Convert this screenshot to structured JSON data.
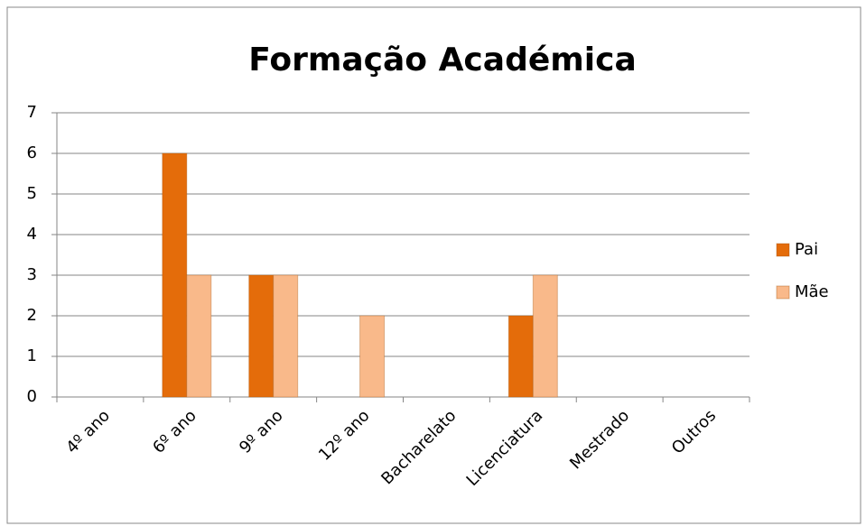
{
  "chart_data": {
    "type": "bar",
    "title": "Formação Académica",
    "categories": [
      "4º ano",
      "6º ano",
      "9º ano",
      "12º ano",
      "Bacharelato",
      "Licenciatura",
      "Mestrado",
      "Outros"
    ],
    "series": [
      {
        "name": "Pai",
        "color": "#e46c0a",
        "values": [
          0,
          6,
          3,
          0,
          0,
          2,
          0,
          0
        ]
      },
      {
        "name": "Mãe",
        "color": "#f9b98a",
        "values": [
          0,
          3,
          3,
          2,
          0,
          3,
          0,
          0
        ]
      }
    ],
    "ylim": [
      0,
      7
    ],
    "yticks": [
      0,
      1,
      2,
      3,
      4,
      5,
      6,
      7
    ],
    "grid": true,
    "legend": "right"
  }
}
